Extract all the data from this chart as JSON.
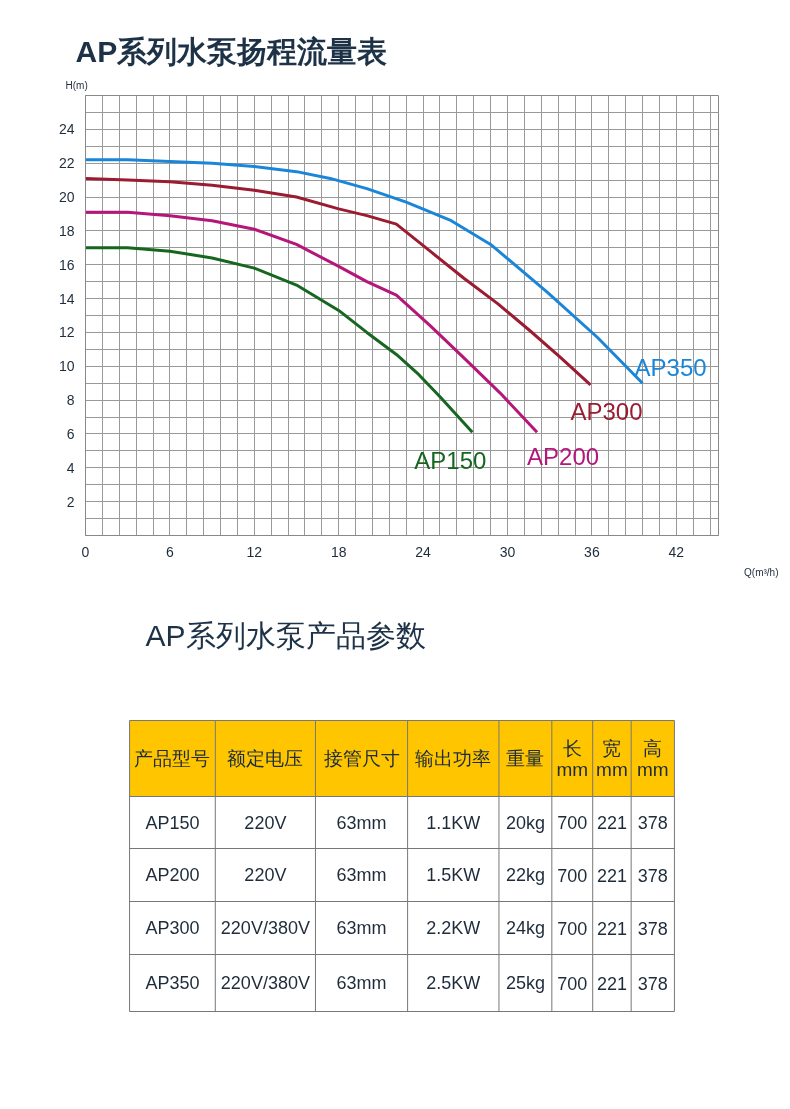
{
  "chart_data": [
    {
      "type": "line",
      "title": "AP系列水泵扬程流量表",
      "xlabel": "Q(m³/h)",
      "ylabel": "H(m)",
      "xlim": [
        0,
        45
      ],
      "ylim": [
        0,
        26
      ],
      "xticks": [
        0,
        6,
        12,
        18,
        24,
        30,
        36,
        42
      ],
      "yticks": [
        2,
        4,
        6,
        8,
        10,
        12,
        14,
        16,
        18,
        20,
        22,
        24
      ],
      "grid": true,
      "series": [
        {
          "name": "AP350",
          "color": "#1a86d9",
          "x": [
            0,
            3,
            6,
            9,
            12,
            15,
            17.4,
            20,
            22.8,
            26,
            28.8,
            32.8,
            36.4,
            39.6
          ],
          "values": [
            22.2,
            22.2,
            22.1,
            22.0,
            21.8,
            21.5,
            21.1,
            20.5,
            19.7,
            18.6,
            17.2,
            14.4,
            11.7,
            9.0
          ]
        },
        {
          "name": "AP300",
          "color": "#9b1b30",
          "x": [
            0,
            3,
            6,
            9,
            12,
            15,
            18,
            20,
            22.1,
            24.5,
            26.9,
            29.3,
            31.6,
            33.8,
            35.9
          ],
          "values": [
            21.1,
            21.0,
            20.9,
            20.7,
            20.4,
            20.0,
            19.3,
            18.9,
            18.4,
            16.8,
            15.2,
            13.7,
            12.1,
            10.5,
            8.9
          ]
        },
        {
          "name": "AP200",
          "color": "#b5167a",
          "x": [
            0,
            3,
            6,
            9,
            12,
            15,
            18,
            20,
            22.1,
            24.5,
            26.9,
            29.5,
            32.1
          ],
          "values": [
            19.1,
            19.1,
            18.9,
            18.6,
            18.1,
            17.2,
            15.9,
            15.0,
            14.2,
            12.4,
            10.5,
            8.4,
            6.1
          ]
        },
        {
          "name": "AP150",
          "color": "#17661f",
          "x": [
            0,
            3,
            6,
            9,
            12,
            15,
            18,
            20,
            22.1,
            23.7,
            25.2,
            26.4,
            27.5
          ],
          "values": [
            17.0,
            17.0,
            16.8,
            16.4,
            15.8,
            14.8,
            13.3,
            12.0,
            10.7,
            9.5,
            8.2,
            7.1,
            6.1
          ]
        }
      ]
    },
    {
      "type": "other",
      "title": "AP系列水泵产品参数",
      "categories": [
        "产品型号",
        "额定电压",
        "接管尺寸",
        "输出功率",
        "重量",
        "长\nmm",
        "宽\nmm",
        "高\nmm"
      ],
      "annotations": [
        "AP150",
        "220V",
        "63mm",
        "1.1KW",
        "20kg",
        "700",
        "221",
        "378",
        "AP200",
        "220V",
        "63mm",
        "1.5KW",
        "22kg",
        "700",
        "221",
        "378",
        "AP300",
        "220V/380V",
        "63mm",
        "2.2KW",
        "24kg",
        "700",
        "221",
        "378",
        "AP350",
        "220V/380V",
        "63mm",
        "2.5KW",
        "25kg",
        "700",
        "221",
        "378"
      ]
    }
  ]
}
